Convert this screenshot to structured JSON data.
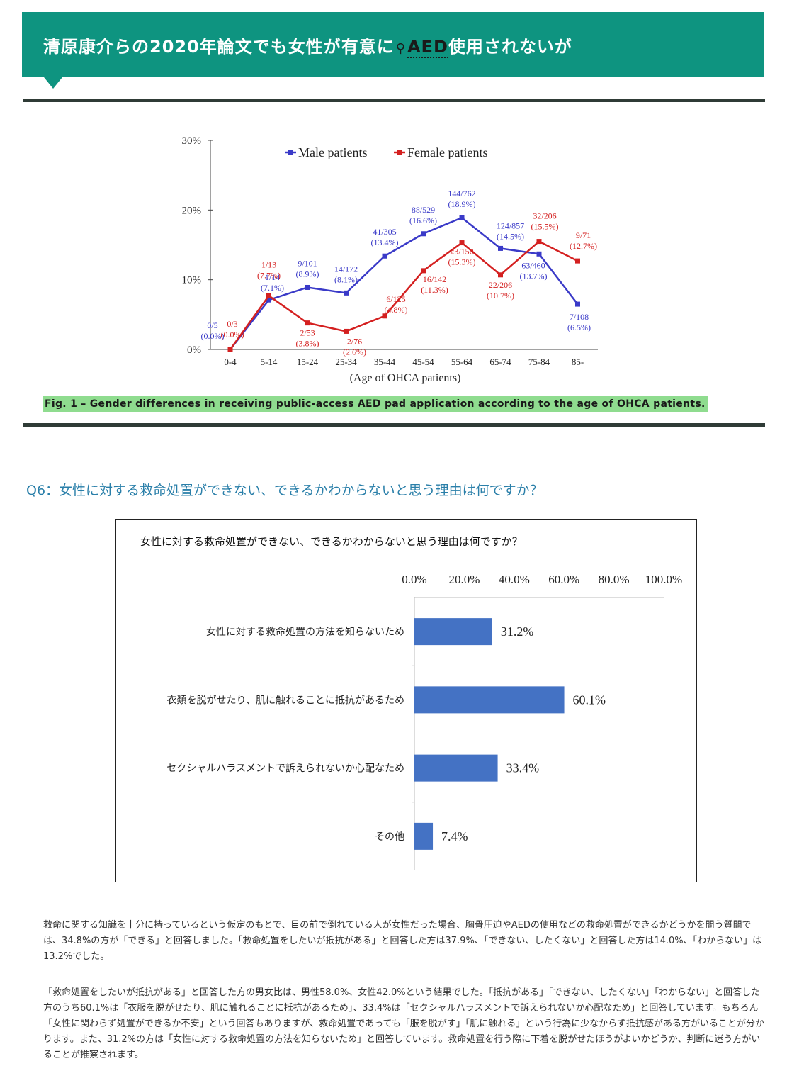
{
  "banner": {
    "title_before": "清原康介らの2020年論文でも女性が有意に",
    "search_glyph": "⚲",
    "link_text": "AED",
    "title_after": "使用されないが",
    "color": "#0e9480"
  },
  "fig1": {
    "caption": "Fig. 1 – Gender differences in receiving public-access AED pad application according to the age of OHCA patients.",
    "chart_data": {
      "type": "line",
      "title": "",
      "xlabel": "(Age of OHCA patients)",
      "ylabel": "",
      "categories": [
        "0-4",
        "5-14",
        "15-24",
        "25-34",
        "35-44",
        "45-54",
        "55-64",
        "65-74",
        "75-84",
        "85-"
      ],
      "ylim": [
        0,
        30
      ],
      "y_ticks": [
        "0%",
        "10%",
        "20%",
        "30%"
      ],
      "grid": false,
      "legend_position": "top",
      "series": [
        {
          "name": "Male patients",
          "color": "#3a3ac8",
          "values": [
            0.0,
            7.1,
            8.9,
            8.1,
            13.4,
            16.6,
            18.9,
            14.5,
            13.7,
            6.5
          ],
          "labels": [
            [
              "0/5",
              "(0.0%)"
            ],
            [
              "1/14",
              "(7.1%)"
            ],
            [
              "9/101",
              "(8.9%)"
            ],
            [
              "14/172",
              "(8.1%)"
            ],
            [
              "41/305",
              "(13.4%)"
            ],
            [
              "88/529",
              "(16.6%)"
            ],
            [
              "144/762",
              "(18.9%)"
            ],
            [
              "124/857",
              "(14.5%)"
            ],
            [
              "63/460",
              "(13.7%)"
            ],
            [
              "7/108",
              "(6.5%)"
            ]
          ]
        },
        {
          "name": "Female patients",
          "color": "#d42020",
          "values": [
            0.0,
            7.7,
            3.8,
            2.6,
            4.8,
            11.3,
            15.3,
            10.7,
            15.5,
            12.7
          ],
          "labels": [
            [
              "0/3",
              "(0.0%)"
            ],
            [
              "1/13",
              "(7.7%)"
            ],
            [
              "2/53",
              "(3.8%)"
            ],
            [
              "2/76",
              "(2.6%)"
            ],
            [
              "6/125",
              "(4.8%)"
            ],
            [
              "16/142",
              "(11.3%)"
            ],
            [
              "23/150",
              "(15.3%)"
            ],
            [
              "22/206",
              "(10.7%)"
            ],
            [
              "32/206",
              "(15.5%)"
            ],
            [
              "9/71",
              "(12.7%)"
            ]
          ]
        }
      ]
    }
  },
  "q6": {
    "heading": "Q6：女性に対する救命処置ができない、できるかわからないと思う理由は何ですか？"
  },
  "bar": {
    "chart_data": {
      "type": "bar",
      "orientation": "horizontal",
      "title": "女性に対する救命処置ができない、できるかわからないと思う理由は何ですか？",
      "xlabel": "",
      "ylabel": "",
      "xlim": [
        0,
        100
      ],
      "x_ticks": [
        "0.0%",
        "20.0%",
        "40.0%",
        "60.0%",
        "80.0%",
        "100.0%"
      ],
      "x_axis_position": "top",
      "bar_color": "#4472c4",
      "categories": [
        "女性に対する救命処置の方法を知らないため",
        "衣類を脱がせたり、肌に触れることに抵抗があるため",
        "セクシャルハラスメントで訴えられないか心配なため",
        "その他"
      ],
      "values": [
        31.2,
        60.1,
        33.4,
        7.4
      ],
      "value_labels": [
        "31.2%",
        "60.1%",
        "33.4%",
        "7.4%"
      ]
    }
  },
  "body": {
    "para1": "救命に関する知識を十分に持っているという仮定のもとで、目の前で倒れている人が女性だった場合、胸骨圧迫やAEDの使用などの救命処置ができるかどうかを問う質問では、34.8%の方が「できる」と回答しました。「救命処置をしたいが抵抗がある」と回答した方は37.9%、「できない、したくない」と回答した方は14.0%、「わからない」は13.2%でした。",
    "para2": "「救命処置をしたいが抵抗がある」と回答した方の男女比は、男性58.0%、女性42.0%という結果でした。「抵抗がある」「できない、したくない」「わからない」と回答した方のうち60.1%は「衣服を脱がせたり、肌に触れることに抵抗があるため」、33.4%は「セクシャルハラスメントで訴えられないか心配なため」と回答しています。もちろん「女性に関わらず処置ができるか不安」という回答もありますが、救命処置であっても「服を脱がす」「肌に触れる」という行為に少なからず抵抗感がある方がいることが分かります。また、31.2%の方は「女性に対する救命処置の方法を知らないため」と回答しています。救命処置を行う際に下着を脱がせたほうがよいかどうか、判断に迷う方がいることが推察されます。"
  }
}
